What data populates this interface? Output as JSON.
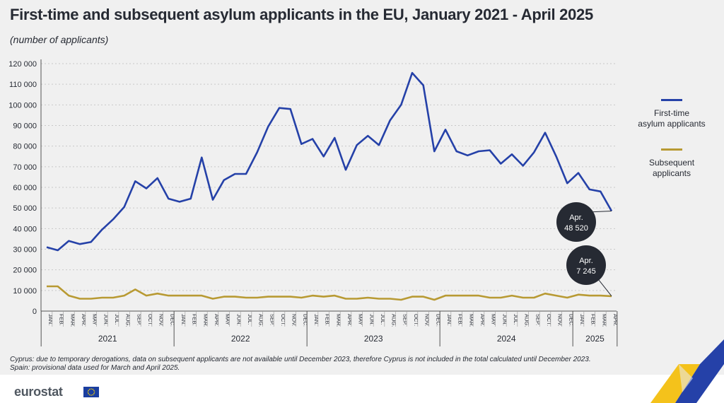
{
  "title": "First-time and subsequent asylum applicants in the EU, January 2021 - April 2025",
  "subtitle": "(number of applicants)",
  "legend": [
    {
      "label_line1": "First-time",
      "label_line2": "asylum applicants",
      "color": "#2541a8"
    },
    {
      "label_line1": "Subsequent",
      "label_line2": "applicants",
      "color": "#b89a33"
    }
  ],
  "notes": [
    "Cyprus: due to temporary derogations, data on subsequent applicants are not available until December 2023, therefore Cyprus is not included in the total calculated until December 2023.",
    "Spain: provisional data used for March and April 2025."
  ],
  "logo_text": "eurostat",
  "chart_data": {
    "type": "line",
    "ylim": [
      0,
      120000
    ],
    "y_ticks": [
      0,
      10000,
      20000,
      30000,
      40000,
      50000,
      60000,
      70000,
      80000,
      90000,
      100000,
      110000,
      120000
    ],
    "y_tick_labels": [
      "0",
      "10 000",
      "20 000",
      "30 000",
      "40 000",
      "50 000",
      "60 000",
      "70 000",
      "80 000",
      "90 000",
      "100 000",
      "110 000",
      "120 000"
    ],
    "month_labels": [
      "JAN.",
      "FEB.",
      "MAR.",
      "APR.",
      "MAY",
      "JUN.",
      "JUL.",
      "AUG.",
      "SEP.",
      "OCT.",
      "NOV.",
      "DEC."
    ],
    "years": [
      {
        "label": "2021",
        "months": 12
      },
      {
        "label": "2022",
        "months": 12
      },
      {
        "label": "2023",
        "months": 12
      },
      {
        "label": "2024",
        "months": 12
      },
      {
        "label": "2025",
        "months": 4
      }
    ],
    "grid": true,
    "series": [
      {
        "name": "First-time asylum applicants",
        "color": "#2541a8",
        "values": [
          31000,
          29500,
          34000,
          32500,
          33500,
          39500,
          44500,
          50500,
          63000,
          59500,
          64500,
          54500,
          53000,
          54500,
          74500,
          54000,
          63500,
          66500,
          66500,
          77000,
          89500,
          98500,
          98000,
          81000,
          83500,
          75000,
          84000,
          68500,
          80500,
          85000,
          80500,
          92500,
          100000,
          115500,
          109500,
          77500,
          88000,
          77500,
          75500,
          77500,
          78000,
          71500,
          76000,
          70500,
          77000,
          86500,
          75000,
          62000,
          67000,
          59000,
          58000,
          48520
        ]
      },
      {
        "name": "Subsequent applicants",
        "color": "#b89a33",
        "values": [
          12000,
          12000,
          7500,
          6000,
          6000,
          6500,
          6500,
          7500,
          10500,
          7500,
          8500,
          7500,
          7500,
          7500,
          7500,
          6000,
          7000,
          7000,
          6500,
          6500,
          7000,
          7000,
          7000,
          6500,
          7500,
          7000,
          7500,
          6000,
          6000,
          6500,
          6000,
          6000,
          5500,
          7000,
          7000,
          5500,
          7500,
          7500,
          7500,
          7500,
          6500,
          6500,
          7500,
          6500,
          6500,
          8500,
          7500,
          6500,
          8000,
          7500,
          7500,
          7245
        ]
      }
    ],
    "annotations": [
      {
        "line1": "Apr.",
        "line2": "48 520"
      },
      {
        "line1": "Apr.",
        "line2": "7 245"
      }
    ]
  }
}
